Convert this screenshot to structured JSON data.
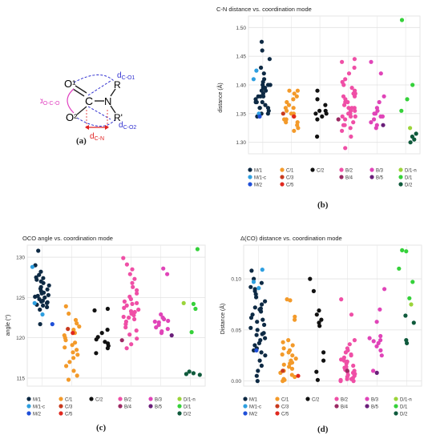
{
  "panel_labels": {
    "a": "(a)",
    "b": "(b)",
    "c": "(c)",
    "d": "(d)"
  },
  "diagram": {
    "atom_o1": "O¹",
    "atom_c": "C",
    "atom_n": "N",
    "atom_o2": "O²",
    "sub_r": "R",
    "sub_r2": "R'",
    "label_alpha_prefix": "α",
    "label_alpha_sub": "O-C-O",
    "label_d_co1_prefix": "d",
    "label_d_co1_sub": "C-O1",
    "label_d_co2_prefix": "d",
    "label_d_co2_sub": "C-O2",
    "label_d_cn_prefix": "d",
    "label_d_cn_sub": "C-N",
    "colors": {
      "alpha": "#e040c0",
      "distances": "#3030d0",
      "cn": "#e02020"
    }
  },
  "legend_groups": [
    {
      "label": "M/1",
      "color": "#0e2a44"
    },
    {
      "label": "M/1-c",
      "color": "#2e9fe0"
    },
    {
      "label": "M/2",
      "color": "#1f4fd8"
    },
    {
      "label": "C/1",
      "color": "#f39a2a"
    },
    {
      "label": "C/3",
      "color": "#c83a1e"
    },
    {
      "label": "C/5",
      "color": "#e0281f"
    },
    {
      "label": "C/2",
      "color": "#111111"
    },
    {
      "label": "B/2",
      "color": "#ef4fa6"
    },
    {
      "label": "B/4",
      "color": "#9b2a63"
    },
    {
      "label": "B/3",
      "color": "#e044b8"
    },
    {
      "label": "B/5",
      "color": "#6a1f7a"
    },
    {
      "label": "D/1-n",
      "color": "#9bd43a"
    },
    {
      "label": "D/1",
      "color": "#35d13a"
    },
    {
      "label": "D/2",
      "color": "#0f5a3c"
    }
  ],
  "chart_data": [
    {
      "id": "b",
      "type": "scatter",
      "title": "C-N distance vs. coordination mode",
      "ylabel": "distance (Å)",
      "ylim": [
        1.28,
        1.52
      ],
      "yticks": [
        1.3,
        1.35,
        1.4,
        1.45,
        1.5
      ],
      "ytick_labels": [
        "1.30",
        "1.35",
        "1.40",
        "1.45",
        "1.50"
      ],
      "grid": true,
      "legend": "bottom",
      "series": [
        {
          "name": "M/1",
          "values": [
            1.475,
            1.46,
            1.445,
            1.43,
            1.42,
            1.41,
            1.405,
            1.4,
            1.4,
            1.395,
            1.39,
            1.39,
            1.385,
            1.38,
            1.38,
            1.375,
            1.37,
            1.37,
            1.365,
            1.36,
            1.36,
            1.355,
            1.35,
            1.35,
            1.345,
            1.4,
            1.38,
            1.36,
            1.395,
            1.37
          ]
        },
        {
          "name": "M/1-c",
          "values": [
            1.425,
            1.41,
            1.35
          ]
        },
        {
          "name": "M/2",
          "values": [
            1.345
          ]
        },
        {
          "name": "C/1",
          "values": [
            1.39,
            1.39,
            1.385,
            1.38,
            1.375,
            1.37,
            1.365,
            1.36,
            1.355,
            1.35,
            1.35,
            1.345,
            1.34,
            1.335,
            1.335,
            1.33,
            1.325,
            1.32,
            1.36,
            1.34
          ]
        },
        {
          "name": "C/3",
          "values": [
            1.35
          ]
        },
        {
          "name": "C/5",
          "values": [
            1.345
          ]
        },
        {
          "name": "C/2",
          "values": [
            1.39,
            1.375,
            1.365,
            1.355,
            1.35,
            1.35,
            1.345,
            1.34,
            1.31,
            1.355
          ]
        },
        {
          "name": "B/2",
          "values": [
            1.445,
            1.44,
            1.43,
            1.42,
            1.41,
            1.4,
            1.395,
            1.39,
            1.385,
            1.38,
            1.38,
            1.375,
            1.37,
            1.37,
            1.365,
            1.36,
            1.36,
            1.355,
            1.355,
            1.35,
            1.35,
            1.345,
            1.345,
            1.34,
            1.335,
            1.33,
            1.325,
            1.32,
            1.31,
            1.29,
            1.405,
            1.385,
            1.36,
            1.345,
            1.33
          ]
        },
        {
          "name": "B/4",
          "values": [
            1.34
          ]
        },
        {
          "name": "B/3",
          "values": [
            1.44,
            1.42,
            1.38,
            1.37,
            1.36,
            1.355,
            1.35,
            1.345,
            1.34,
            1.335,
            1.33,
            1.325,
            1.345,
            1.35
          ]
        },
        {
          "name": "B/5",
          "values": [
            1.33
          ]
        },
        {
          "name": "D/1-n",
          "values": [
            1.325
          ]
        },
        {
          "name": "D/1",
          "values": [
            1.513,
            1.4,
            1.375,
            1.355
          ]
        },
        {
          "name": "D/2",
          "values": [
            1.315,
            1.31,
            1.305,
            1.3
          ]
        }
      ]
    },
    {
      "id": "c",
      "type": "scatter",
      "title": "OCO angle vs. coordination mode",
      "ylabel": "angle (°)",
      "ylim": [
        114,
        131.5
      ],
      "yticks": [
        115,
        120,
        125,
        130
      ],
      "ytick_labels": [
        "115",
        "120",
        "125",
        "130"
      ],
      "grid": true,
      "legend": "bottom",
      "series": [
        {
          "name": "M/1",
          "values": [
            130.8,
            129.0,
            128.2,
            127.8,
            127.5,
            127.2,
            127.0,
            126.8,
            126.5,
            126.3,
            126.0,
            125.8,
            125.6,
            125.5,
            125.3,
            125.1,
            125.0,
            124.8,
            124.6,
            124.5,
            124.3,
            124.1,
            124.0,
            123.8,
            123.5,
            126.1,
            125.2,
            124.4,
            127.4,
            121.7
          ]
        },
        {
          "name": "M/1-c",
          "values": [
            128.8,
            124.3,
            122.9
          ]
        },
        {
          "name": "M/2",
          "values": [
            121.7
          ]
        },
        {
          "name": "C/1",
          "values": [
            123.9,
            123.0,
            122.2,
            121.8,
            121.4,
            121.0,
            120.6,
            120.3,
            120.0,
            119.7,
            119.4,
            119.1,
            118.8,
            118.5,
            118.2,
            117.9,
            117.5,
            117.0,
            116.5,
            115.9,
            115.3,
            114.8
          ]
        },
        {
          "name": "C/3",
          "values": [
            121.1
          ]
        },
        {
          "name": "C/5",
          "values": [
            120.6
          ]
        },
        {
          "name": "C/2",
          "values": [
            123.6,
            123.4,
            121.0,
            120.6,
            120.1,
            119.8,
            119.5,
            119.3,
            119.0,
            118.7,
            118.1
          ]
        },
        {
          "name": "B/2",
          "values": [
            129.9,
            129.1,
            128.5,
            127.9,
            127.3,
            126.8,
            126.3,
            125.9,
            125.5,
            125.1,
            124.8,
            124.5,
            124.2,
            124.0,
            123.7,
            123.5,
            123.2,
            123.0,
            122.8,
            122.5,
            122.3,
            122.0,
            121.7,
            121.3,
            120.9,
            120.4,
            119.9,
            119.2,
            118.7,
            124.3,
            123.3,
            122.6
          ]
        },
        {
          "name": "B/4",
          "values": [
            119.7
          ]
        },
        {
          "name": "B/3",
          "values": [
            128.6,
            127.9,
            122.9,
            122.5,
            122.3,
            122.1,
            121.9,
            121.6,
            121.3,
            121.1,
            120.8,
            120.6,
            122.0
          ]
        },
        {
          "name": "B/5",
          "values": [
            120.3
          ]
        },
        {
          "name": "D/1-n",
          "values": [
            124.3
          ]
        },
        {
          "name": "D/1",
          "values": [
            131.0,
            124.2,
            123.6,
            120.7
          ]
        },
        {
          "name": "D/2",
          "values": [
            115.8,
            115.6,
            115.5,
            115.4
          ]
        }
      ]
    },
    {
      "id": "d",
      "type": "scatter",
      "title": "Δ(CO) distance vs. coordination mode",
      "ylabel": "Distance (Å)",
      "ylim": [
        -0.005,
        0.133
      ],
      "yticks": [
        0.0,
        0.05,
        0.1
      ],
      "ytick_labels": [
        "0.00",
        "0.05",
        "0.10"
      ],
      "grid": true,
      "legend": "bottom",
      "series": [
        {
          "name": "M/1",
          "values": [
            0.108,
            0.1,
            0.096,
            0.092,
            0.09,
            0.088,
            0.085,
            0.082,
            0.078,
            0.075,
            0.072,
            0.07,
            0.068,
            0.065,
            0.062,
            0.06,
            0.058,
            0.055,
            0.052,
            0.05,
            0.047,
            0.045,
            0.042,
            0.04,
            0.037,
            0.035,
            0.032,
            0.028,
            0.025,
            0.02,
            0.015,
            0.01,
            0.005,
            0.0,
            0.046,
            0.03,
            0.071
          ]
        },
        {
          "name": "M/1-c",
          "values": [
            0.109,
            0.097,
            0.091
          ]
        },
        {
          "name": "M/2",
          "values": [
            0.03
          ]
        },
        {
          "name": "C/1",
          "values": [
            0.08,
            0.079,
            0.063,
            0.06,
            0.04,
            0.038,
            0.035,
            0.032,
            0.03,
            0.028,
            0.025,
            0.022,
            0.02,
            0.018,
            0.016,
            0.014,
            0.012,
            0.01,
            0.008,
            0.006,
            0.004,
            0.002,
            0.001,
            0.0,
            0.026,
            0.017
          ]
        },
        {
          "name": "C/3",
          "values": [
            0.01
          ]
        },
        {
          "name": "C/5",
          "values": [
            0.005
          ]
        },
        {
          "name": "C/2",
          "values": [
            0.1,
            0.088,
            0.069,
            0.065,
            0.06,
            0.057,
            0.054,
            0.028,
            0.02,
            0.009,
            0.001
          ]
        },
        {
          "name": "B/2",
          "values": [
            0.08,
            0.065,
            0.04,
            0.036,
            0.032,
            0.03,
            0.028,
            0.025,
            0.023,
            0.021,
            0.019,
            0.017,
            0.015,
            0.013,
            0.012,
            0.011,
            0.01,
            0.009,
            0.008,
            0.007,
            0.006,
            0.005,
            0.004,
            0.003,
            0.002,
            0.002,
            0.001,
            0.0,
            0.0,
            0.014,
            0.02,
            0.026
          ]
        },
        {
          "name": "B/4",
          "values": [
            0.01
          ]
        },
        {
          "name": "B/3",
          "values": [
            0.09,
            0.07,
            0.058,
            0.044,
            0.042,
            0.04,
            0.039,
            0.037,
            0.034,
            0.03,
            0.025,
            0.01
          ]
        },
        {
          "name": "B/5",
          "values": [
            0.008
          ]
        },
        {
          "name": "D/1-n",
          "values": [
            0.075
          ]
        },
        {
          "name": "D/1",
          "values": [
            0.128,
            0.127,
            0.11,
            0.097,
            0.081
          ]
        },
        {
          "name": "D/2",
          "values": [
            0.064,
            0.057,
            0.04,
            0.037
          ]
        }
      ]
    }
  ]
}
